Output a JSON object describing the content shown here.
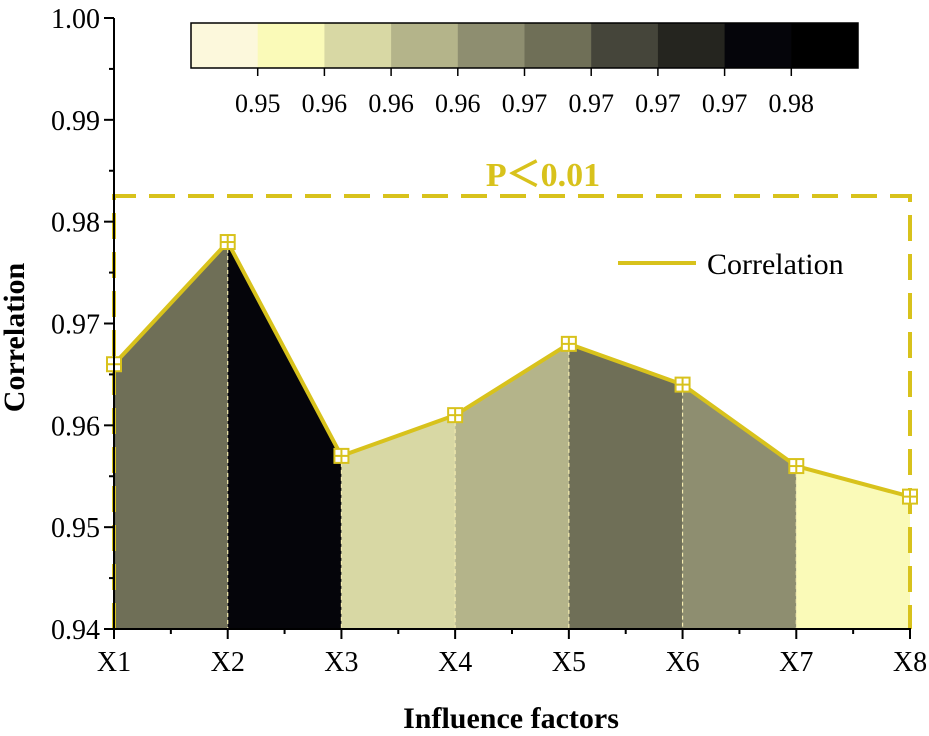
{
  "chart_data": {
    "type": "area",
    "xlabel": "Influence factors",
    "ylabel": "Correlation",
    "categories": [
      "X1",
      "X2",
      "X3",
      "X4",
      "X5",
      "X6",
      "X7",
      "X8"
    ],
    "series": [
      {
        "name": "Correlation",
        "values": [
          0.966,
          0.978,
          0.957,
          0.961,
          0.968,
          0.964,
          0.956,
          0.953
        ]
      }
    ],
    "ylim": [
      0.94,
      1.0
    ],
    "yticks": [
      "0.94",
      "0.95",
      "0.96",
      "0.97",
      "0.98",
      "0.99",
      "1.00"
    ],
    "segment_fill_colors": [
      "#6f6f57",
      "#05050a",
      "#d8d8a4",
      "#b4b48a",
      "#6f6f57",
      "#8e8e70",
      "#fafab8"
    ],
    "line_color": "#d8c21c",
    "annotation": "P＜0.01",
    "annotation_color": "#d8c21c",
    "colorbar": {
      "colors": [
        "#fcf8dc",
        "#fafab8",
        "#d8d8a4",
        "#b4b48a",
        "#8e8e70",
        "#6f6f57",
        "#45453a",
        "#25251f",
        "#05050a",
        "#000000"
      ],
      "labels": [
        "0.95",
        "0.96",
        "0.96",
        "0.96",
        "0.97",
        "0.97",
        "0.97",
        "0.97",
        "0.98"
      ]
    },
    "legend_position": "top-right",
    "grid": false
  }
}
